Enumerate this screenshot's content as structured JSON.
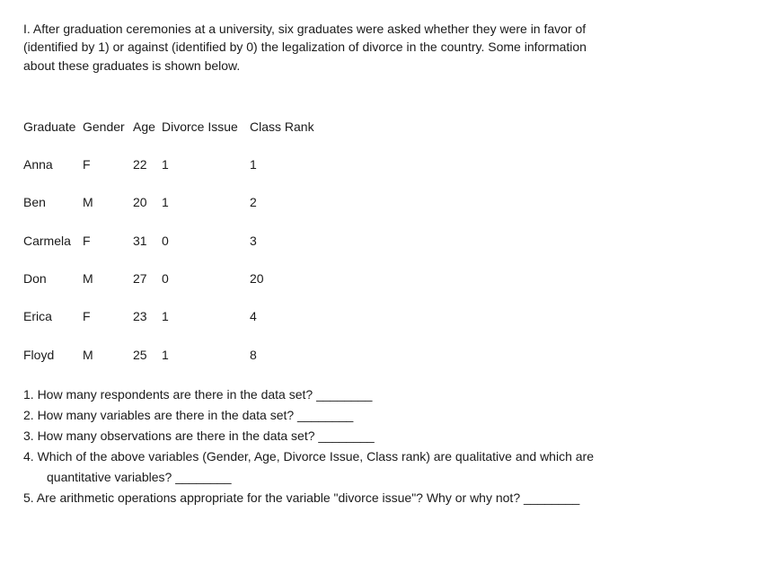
{
  "intro": {
    "line1": "I.  After graduation ceremonies at a university, six graduates were asked whether they were in favor of",
    "line2": "(identified by 1) or against (identified by 0) the legalization of divorce in the country. Some information",
    "line3": "about these graduates is shown below."
  },
  "table": {
    "headers": {
      "graduate": "Graduate",
      "gender": "Gender",
      "age": "Age",
      "divorce": "Divorce Issue",
      "classrank": "Class Rank"
    },
    "rows": [
      {
        "graduate": "Anna",
        "gender": "F",
        "age": "22",
        "divorce": "1",
        "classrank": "1"
      },
      {
        "graduate": "Ben",
        "gender": "M",
        "age": "20",
        "divorce": "1",
        "classrank": "2"
      },
      {
        "graduate": "Carmela",
        "gender": "F",
        "age": "31",
        "divorce": "0",
        "classrank": "3"
      },
      {
        "graduate": "Don",
        "gender": "M",
        "age": "27",
        "divorce": "0",
        "classrank": "20"
      },
      {
        "graduate": "Erica",
        "gender": "F",
        "age": "23",
        "divorce": "1",
        "classrank": "4"
      },
      {
        "graduate": "Floyd",
        "gender": "M",
        "age": "25",
        "divorce": "1",
        "classrank": "8"
      }
    ]
  },
  "questions": {
    "q1": "1.  How many respondents are there in the data set? ________",
    "q2": "2.  How many variables are there in the data set? ________",
    "q3": "3. How many observations are there in the data set? ________",
    "q4a": "4. Which of the above variables (Gender, Age, Divorce Issue, Class rank) are qualitative and which are",
    "q4b": "quantitative variables? ________",
    "q5": "5.  Are arithmetic operations appropriate for the variable \"divorce issue\"? Why or why not? ________"
  }
}
